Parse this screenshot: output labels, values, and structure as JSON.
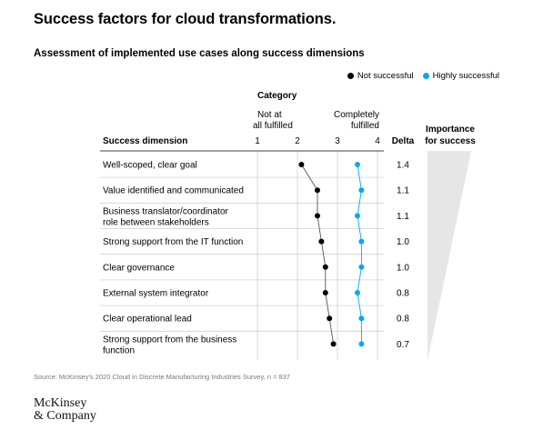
{
  "title": "Success factors for cloud transformations.",
  "subtitle": "Assessment of implemented use cases along success dimensions",
  "legend": {
    "not_successful": "Not successful",
    "highly_successful": "Highly successful"
  },
  "colors": {
    "not_successful": "#000000",
    "highly_successful": "#00a9f4",
    "gridline": "#d0d0d0",
    "wedge": "#e6e6e6"
  },
  "chart_data": {
    "type": "scatter",
    "category_label": "Category",
    "scale_min_label": "Not at all fulfilled",
    "scale_max_label": "Completely fulfilled",
    "scale_min_lines": [
      "Not at",
      "all fulfilled"
    ],
    "scale_max_lines": [
      "Completely",
      "fulfilled"
    ],
    "x_ticks": [
      "1",
      "2",
      "3",
      "4"
    ],
    "xlim": [
      1,
      4
    ],
    "row_header": "Success dimension",
    "delta_header": "Delta",
    "importance_header_lines": [
      "Importance",
      "for success"
    ],
    "rows": [
      {
        "label_lines": [
          "Well-scoped, clear goal"
        ],
        "not_successful": 2.1,
        "highly_successful": 3.5,
        "delta": "1.4"
      },
      {
        "label_lines": [
          "Value identified and communicated"
        ],
        "not_successful": 2.5,
        "highly_successful": 3.6,
        "delta": "1.1"
      },
      {
        "label_lines": [
          "Business translator/coordinator",
          "role between stakeholders"
        ],
        "not_successful": 2.5,
        "highly_successful": 3.5,
        "delta": "1.1"
      },
      {
        "label_lines": [
          "Strong support from the IT function"
        ],
        "not_successful": 2.6,
        "highly_successful": 3.6,
        "delta": "1.0"
      },
      {
        "label_lines": [
          "Clear governance"
        ],
        "not_successful": 2.7,
        "highly_successful": 3.6,
        "delta": "1.0"
      },
      {
        "label_lines": [
          "External system integrator"
        ],
        "not_successful": 2.7,
        "highly_successful": 3.5,
        "delta": "0.8"
      },
      {
        "label_lines": [
          "Clear operational lead"
        ],
        "not_successful": 2.8,
        "highly_successful": 3.6,
        "delta": "0.8"
      },
      {
        "label_lines": [
          "Strong support from the business",
          "function"
        ],
        "not_successful": 2.9,
        "highly_successful": 3.6,
        "delta": "0.7"
      }
    ]
  },
  "source": "Source: McKinsey's 2020 Cloud in Discrete Manufacturing Industries Survey, n = 837",
  "logo_lines": [
    "McKinsey",
    "& Company"
  ]
}
